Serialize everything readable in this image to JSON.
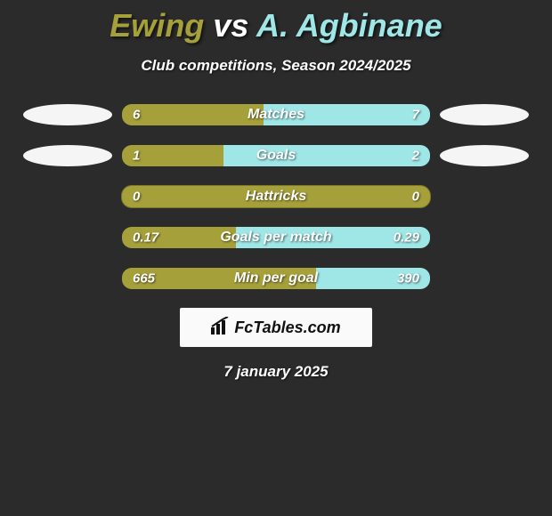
{
  "title_left": "Ewing",
  "title_vs": "vs",
  "title_right": "A. Agbinane",
  "title_color_left": "#a6a03a",
  "title_color_right": "#9fe6e6",
  "subtitle": "Club competitions, Season 2024/2025",
  "date_line": "7 january 2025",
  "brand_text": "FcTables.com",
  "colors": {
    "left_fill": "#a6a03a",
    "right_fill": "#9fe6e6",
    "neutral_fill": "#a6a03a",
    "bar_bg_dark": "#3a3a3a"
  },
  "stats": [
    {
      "label": "Matches",
      "left_val": "6",
      "right_val": "7",
      "left_pct": 46,
      "right_pct": 54,
      "show_left_photo": true,
      "show_right_photo": true
    },
    {
      "label": "Goals",
      "left_val": "1",
      "right_val": "2",
      "left_pct": 33,
      "right_pct": 67,
      "show_left_photo": true,
      "show_right_photo": true
    },
    {
      "label": "Hattricks",
      "left_val": "0",
      "right_val": "0",
      "left_pct": 0,
      "right_pct": 0,
      "show_left_photo": false,
      "show_right_photo": false
    },
    {
      "label": "Goals per match",
      "left_val": "0.17",
      "right_val": "0.29",
      "left_pct": 37,
      "right_pct": 63,
      "show_left_photo": false,
      "show_right_photo": false
    },
    {
      "label": "Min per goal",
      "left_val": "665",
      "right_val": "390",
      "left_pct": 63,
      "right_pct": 37,
      "show_left_photo": false,
      "show_right_photo": false
    }
  ]
}
